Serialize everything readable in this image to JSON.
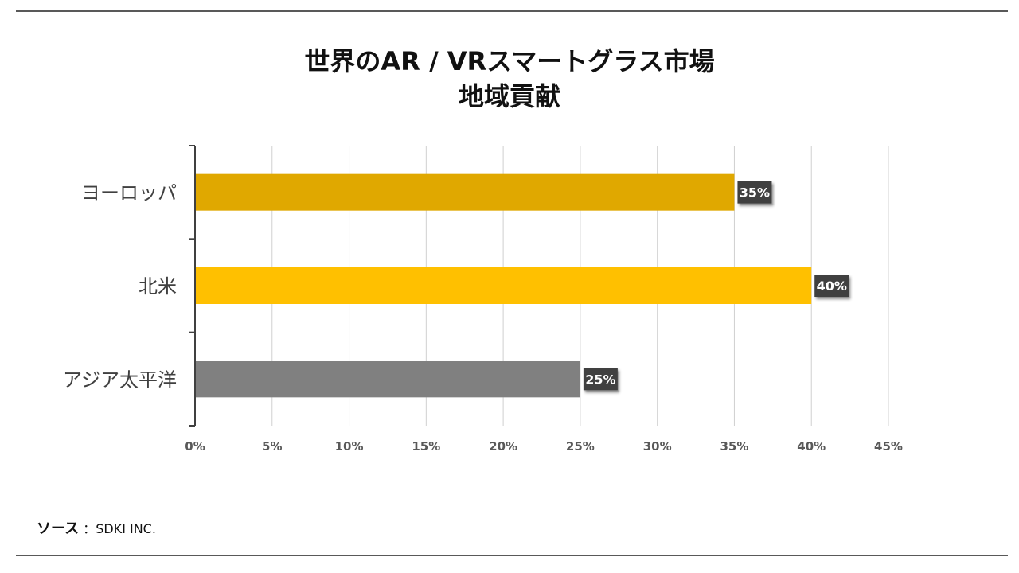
{
  "chart_data": {
    "type": "bar",
    "orientation": "horizontal",
    "title_lines": [
      "世界のAR / VRスマートグラス市場",
      "地域貢献"
    ],
    "categories": [
      "ヨーロッパ",
      "北米",
      "アジア太平洋"
    ],
    "values": [
      35,
      40,
      25
    ],
    "value_labels": [
      "35%",
      "40%",
      "25%"
    ],
    "colors": [
      "#E0A800",
      "#FFC000",
      "#808080"
    ],
    "x_ticks": [
      "0%",
      "5%",
      "10%",
      "15%",
      "20%",
      "25%",
      "30%",
      "35%",
      "40%",
      "45%"
    ],
    "xlim": [
      0,
      45
    ],
    "grid": true,
    "legend": "none"
  },
  "source": {
    "label": "ソース",
    "separator": "：",
    "value": "SDKI INC."
  }
}
